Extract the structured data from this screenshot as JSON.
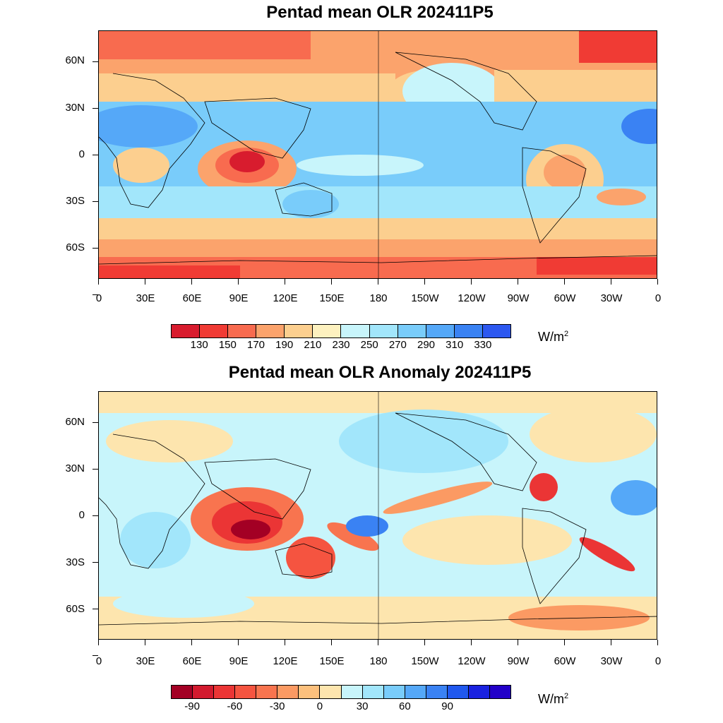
{
  "panels": [
    {
      "title": "Pentad mean OLR 202411P5",
      "units_base": "W/m",
      "units_exp": "2",
      "colorbar_labels": [
        "130",
        "150",
        "170",
        "190",
        "210",
        "230",
        "250",
        "270",
        "290",
        "310",
        "330"
      ],
      "colors": [
        "#d81c2e",
        "#f03b34",
        "#f86b4f",
        "#fba36c",
        "#fccf8f",
        "#fdf1bf",
        "#c8f5fb",
        "#a2e6fb",
        "#79ccfa",
        "#55a8f8",
        "#3a82f3",
        "#2d58f0"
      ]
    },
    {
      "title": "Pentad mean OLR Anomaly 202411P5",
      "units_base": "W/m",
      "units_exp": "2",
      "colorbar_labels": [
        "-90",
        "-60",
        "-30",
        "0",
        "30",
        "60",
        "90"
      ],
      "colorbar_label_slots": [
        1,
        3,
        5,
        7,
        9,
        11,
        13
      ],
      "colors": [
        "#a30024",
        "#d21a2e",
        "#eb3535",
        "#f55440",
        "#f8744f",
        "#fb9a63",
        "#fcc07d",
        "#fde5ae",
        "#c8f5fb",
        "#a2e6fb",
        "#79ccfa",
        "#55a8f8",
        "#3a82f3",
        "#2058ee",
        "#1a22e0",
        "#2200c8"
      ]
    }
  ],
  "lat_labels": [
    "60N",
    "30N",
    "0",
    "30S",
    "60S"
  ],
  "lon_labels": [
    "0",
    "30E",
    "60E",
    "90E",
    "120E",
    "150E",
    "180",
    "150W",
    "120W",
    "90W",
    "60W",
    "30W",
    "0"
  ]
}
